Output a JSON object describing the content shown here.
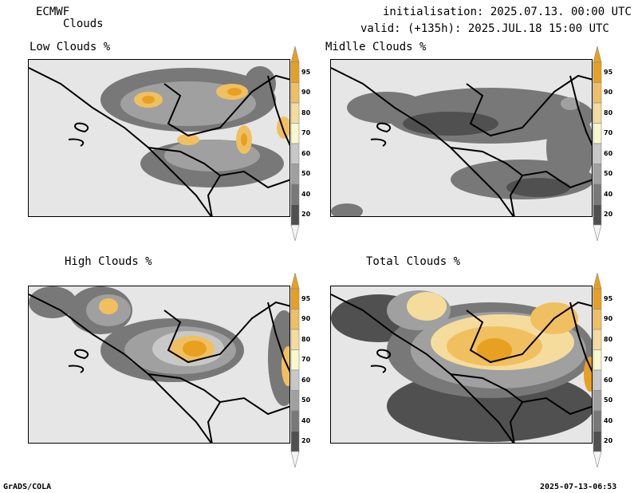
{
  "header": {
    "model": "ECMWF",
    "product": "Clouds",
    "init_line": "initialisation: 2025.07.13. 00:00 UTC",
    "valid_line": "valid: (+135h): 2025.JUL.18 15:00 UTC"
  },
  "panels": [
    {
      "title": "Low Clouds %"
    },
    {
      "title": "Midlle Clouds %"
    },
    {
      "title": "High Clouds %"
    },
    {
      "title": "Total Clouds %"
    }
  ],
  "colorbar": {
    "levels": [
      "95",
      "90",
      "80",
      "70",
      "60",
      "50",
      "40",
      "20"
    ],
    "colors": [
      "#e8a020",
      "#f0c060",
      "#f5dc9c",
      "#f8f8cc",
      "#c8c8c8",
      "#a0a0a0",
      "#787878",
      "#505050"
    ]
  },
  "footer": {
    "left": "GrADS/COLA",
    "right": "2025-07-13-06:53"
  }
}
